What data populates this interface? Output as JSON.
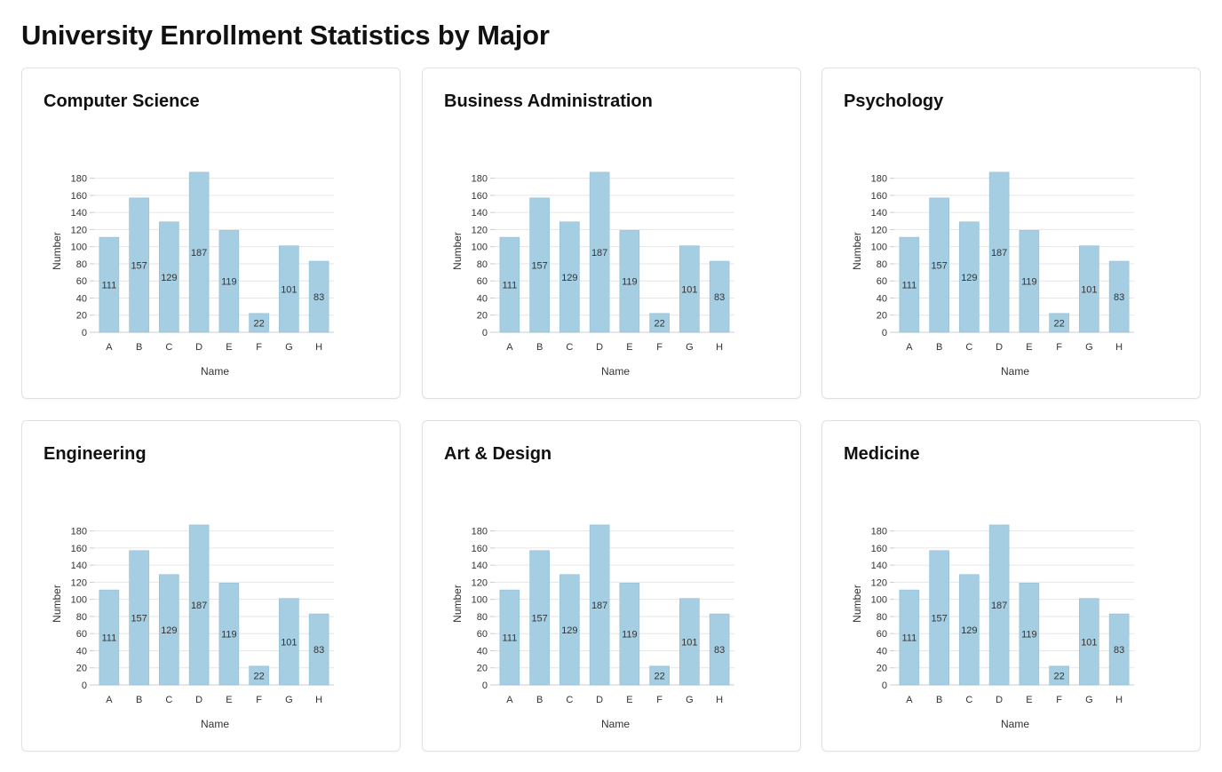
{
  "page": {
    "title": "University Enrollment Statistics by Major"
  },
  "colors": {
    "bar": "#a6cee3",
    "grid": "#e6e6e6",
    "axis": "#cccccc",
    "text": "#333333"
  },
  "chart_data": [
    {
      "type": "bar",
      "title": "Computer Science",
      "xlabel": "Name",
      "ylabel": "Number",
      "categories": [
        "A",
        "B",
        "C",
        "D",
        "E",
        "F",
        "G",
        "H"
      ],
      "values": [
        111,
        157,
        129,
        187,
        119,
        22,
        101,
        83
      ],
      "yticks": [
        0,
        20,
        40,
        60,
        80,
        100,
        120,
        140,
        160,
        180
      ],
      "ylim": [
        0,
        190
      ],
      "grid": true,
      "data_labels": true
    },
    {
      "type": "bar",
      "title": "Business Administration",
      "xlabel": "Name",
      "ylabel": "Number",
      "categories": [
        "A",
        "B",
        "C",
        "D",
        "E",
        "F",
        "G",
        "H"
      ],
      "values": [
        111,
        157,
        129,
        187,
        119,
        22,
        101,
        83
      ],
      "yticks": [
        0,
        20,
        40,
        60,
        80,
        100,
        120,
        140,
        160,
        180
      ],
      "ylim": [
        0,
        190
      ],
      "grid": true,
      "data_labels": true
    },
    {
      "type": "bar",
      "title": "Psychology",
      "xlabel": "Name",
      "ylabel": "Number",
      "categories": [
        "A",
        "B",
        "C",
        "D",
        "E",
        "F",
        "G",
        "H"
      ],
      "values": [
        111,
        157,
        129,
        187,
        119,
        22,
        101,
        83
      ],
      "yticks": [
        0,
        20,
        40,
        60,
        80,
        100,
        120,
        140,
        160,
        180
      ],
      "ylim": [
        0,
        190
      ],
      "grid": true,
      "data_labels": true
    },
    {
      "type": "bar",
      "title": "Engineering",
      "xlabel": "Name",
      "ylabel": "Number",
      "categories": [
        "A",
        "B",
        "C",
        "D",
        "E",
        "F",
        "G",
        "H"
      ],
      "values": [
        111,
        157,
        129,
        187,
        119,
        22,
        101,
        83
      ],
      "yticks": [
        0,
        20,
        40,
        60,
        80,
        100,
        120,
        140,
        160,
        180
      ],
      "ylim": [
        0,
        190
      ],
      "grid": true,
      "data_labels": true
    },
    {
      "type": "bar",
      "title": "Art & Design",
      "xlabel": "Name",
      "ylabel": "Number",
      "categories": [
        "A",
        "B",
        "C",
        "D",
        "E",
        "F",
        "G",
        "H"
      ],
      "values": [
        111,
        157,
        129,
        187,
        119,
        22,
        101,
        83
      ],
      "yticks": [
        0,
        20,
        40,
        60,
        80,
        100,
        120,
        140,
        160,
        180
      ],
      "ylim": [
        0,
        190
      ],
      "grid": true,
      "data_labels": true
    },
    {
      "type": "bar",
      "title": "Medicine",
      "xlabel": "Name",
      "ylabel": "Number",
      "categories": [
        "A",
        "B",
        "C",
        "D",
        "E",
        "F",
        "G",
        "H"
      ],
      "values": [
        111,
        157,
        129,
        187,
        119,
        22,
        101,
        83
      ],
      "yticks": [
        0,
        20,
        40,
        60,
        80,
        100,
        120,
        140,
        160,
        180
      ],
      "ylim": [
        0,
        190
      ],
      "grid": true,
      "data_labels": true
    }
  ]
}
